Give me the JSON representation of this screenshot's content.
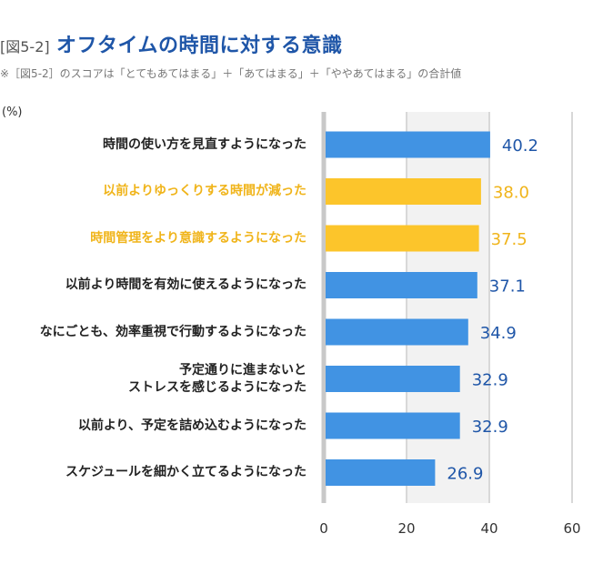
{
  "figure_number": "[図5-2]",
  "title": "オフタイムの時間に対する意識",
  "note": "※［図5-2］のスコアは「とてもあてはまる」＋「あてはまる」＋「ややあてはまる」の合計値",
  "unit": "(%)",
  "colors": {
    "primary": "#4193e3",
    "highlight": "#fcc52b",
    "value_primary": "#1f56a8",
    "value_highlight": "#f0b41a"
  },
  "chart_data": {
    "type": "bar",
    "orientation": "horizontal",
    "title": "オフタイムの時間に対する意識",
    "xlabel": "",
    "ylabel": "",
    "unit": "%",
    "xlim": [
      0,
      60
    ],
    "ticks": [
      0,
      20,
      40,
      60
    ],
    "grid": true,
    "categories": [
      "時間の使い方を見直すようになった",
      "以前よりゆっくりする時間が減った",
      "時間管理をより意識するようになった",
      "以前より時間を有効に使えるようになった",
      "なにごとも、効率重視で行動するようになった",
      "予定通りに進まないと\nストレスを感じるようになった",
      "以前より、予定を詰め込むようになった",
      "スケジュールを細かく立てるようになった"
    ],
    "values": [
      40.2,
      38.0,
      37.5,
      37.1,
      34.9,
      32.9,
      32.9,
      26.9
    ],
    "value_labels": [
      "40.2",
      "38.0",
      "37.5",
      "37.1",
      "34.9",
      "32.9",
      "32.9",
      "26.9"
    ],
    "highlighted": [
      false,
      true,
      true,
      false,
      false,
      false,
      false,
      false
    ]
  }
}
